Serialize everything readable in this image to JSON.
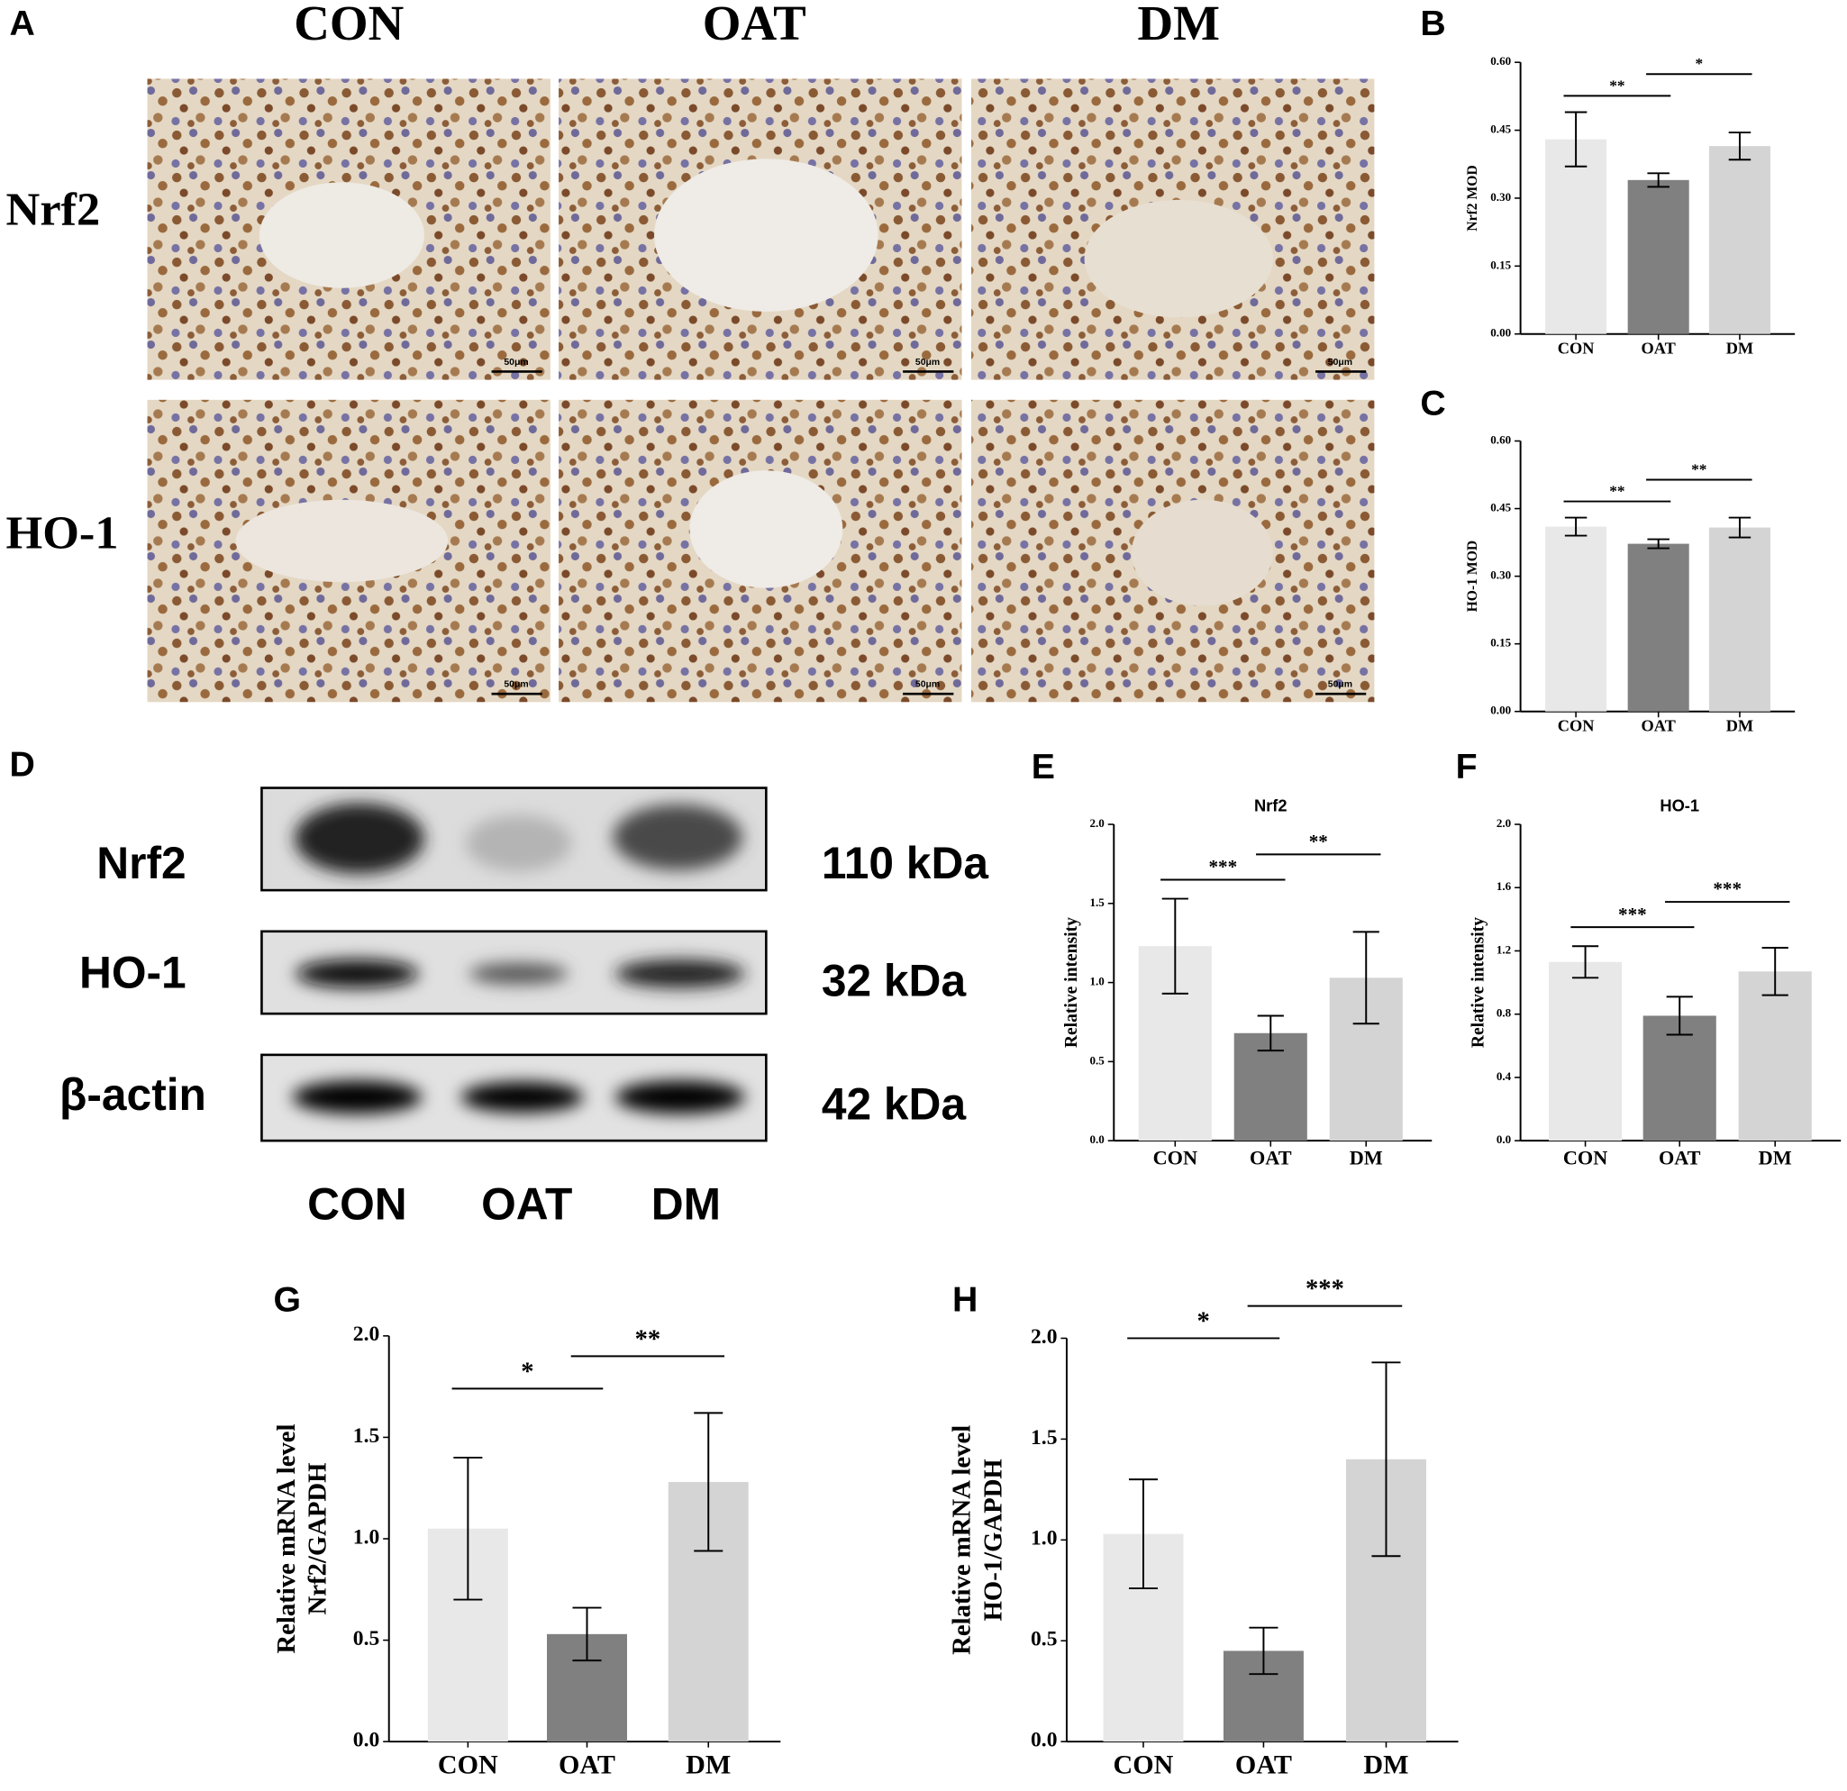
{
  "panel_labels": [
    "A",
    "B",
    "C",
    "D",
    "E",
    "F",
    "G",
    "H"
  ],
  "ihc": {
    "columns": [
      "CON",
      "OAT",
      "DM"
    ],
    "rows": [
      "Nrf2",
      "HO-1"
    ],
    "scale_bar": "50μm"
  },
  "western_blot": {
    "proteins": [
      "Nrf2",
      "HO-1",
      "β-actin"
    ],
    "sizes": [
      "110 kDa",
      "32 kDa",
      "42 kDa"
    ],
    "lanes": [
      "CON",
      "OAT",
      "DM"
    ]
  },
  "chart_data": [
    {
      "type": "bar",
      "y_label": "Nrf2 MOD",
      "categories": [
        "CON",
        "OAT",
        "DM"
      ],
      "values": [
        0.43,
        0.34,
        0.415
      ],
      "errors": [
        0.06,
        0.015,
        0.03
      ],
      "colors": [
        "#e8e8e8",
        "#808080",
        "#d4d4d4"
      ],
      "ylim": [
        0,
        0.6
      ],
      "yticks": [
        {
          "value": 0,
          "label": "0.00"
        },
        {
          "value": 0.15,
          "label": "0.15"
        },
        {
          "value": 0.3,
          "label": "0.30"
        },
        {
          "value": 0.45,
          "label": "0.45"
        },
        {
          "value": 0.6,
          "label": "0.60"
        }
      ],
      "significance": [
        "**",
        "*"
      ]
    },
    {
      "type": "bar",
      "y_label": "HO-1 MOD",
      "categories": [
        "CON",
        "OAT",
        "DM"
      ],
      "values": [
        0.41,
        0.372,
        0.408
      ],
      "errors": [
        0.02,
        0.01,
        0.022
      ],
      "colors": [
        "#e8e8e8",
        "#808080",
        "#d4d4d4"
      ],
      "ylim": [
        0,
        0.6
      ],
      "yticks": [
        {
          "value": 0,
          "label": "0.00"
        },
        {
          "value": 0.15,
          "label": "0.15"
        },
        {
          "value": 0.3,
          "label": "0.30"
        },
        {
          "value": 0.45,
          "label": "0.45"
        },
        {
          "value": 0.6,
          "label": "0.60"
        }
      ],
      "significance": [
        "**",
        "**"
      ]
    },
    {
      "type": "bar",
      "title": "Nrf2",
      "y_label": "Relative intensity",
      "categories": [
        "CON",
        "OAT",
        "DM"
      ],
      "values": [
        1.23,
        0.68,
        1.03
      ],
      "errors": [
        0.3,
        0.11,
        0.29
      ],
      "colors": [
        "#e8e8e8",
        "#808080",
        "#d4d4d4"
      ],
      "ylim": [
        0,
        2
      ],
      "yticks": [
        {
          "value": 0,
          "label": "0.0"
        },
        {
          "value": 0.5,
          "label": "0.5"
        },
        {
          "value": 1,
          "label": "1.0"
        },
        {
          "value": 1.5,
          "label": "1.5"
        },
        {
          "value": 2,
          "label": "2.0"
        }
      ],
      "significance": [
        "***",
        "**"
      ]
    },
    {
      "type": "bar",
      "title": "HO-1",
      "y_label": "Relative intensity",
      "categories": [
        "CON",
        "OAT",
        "DM"
      ],
      "values": [
        1.13,
        0.79,
        1.07
      ],
      "errors": [
        0.1,
        0.12,
        0.15
      ],
      "colors": [
        "#e8e8e8",
        "#808080",
        "#d4d4d4"
      ],
      "ylim": [
        0,
        2
      ],
      "yticks": [
        {
          "value": 0,
          "label": "0.0"
        },
        {
          "value": 0.4,
          "label": "0.4"
        },
        {
          "value": 0.8,
          "label": "0.8"
        },
        {
          "value": 1.2,
          "label": "1.2"
        },
        {
          "value": 1.6,
          "label": "1.6"
        },
        {
          "value": 2,
          "label": "2.0"
        }
      ],
      "significance": [
        "***",
        "***"
      ]
    },
    {
      "type": "bar",
      "y_label": [
        "Relative mRNA level",
        "Nrf2/GAPDH"
      ],
      "categories": [
        "CON",
        "OAT",
        "DM"
      ],
      "values": [
        1.05,
        0.53,
        1.28
      ],
      "errors": [
        0.35,
        0.13,
        0.34
      ],
      "colors": [
        "#e8e8e8",
        "#808080",
        "#d4d4d4"
      ],
      "ylim": [
        0,
        2
      ],
      "yticks": [
        {
          "value": 0,
          "label": "0.0"
        },
        {
          "value": 0.5,
          "label": "0.5"
        },
        {
          "value": 1,
          "label": "1.0"
        },
        {
          "value": 1.5,
          "label": "1.5"
        },
        {
          "value": 2,
          "label": "2.0"
        }
      ],
      "significance": [
        "*",
        "**"
      ]
    },
    {
      "type": "bar",
      "y_label": [
        "Relative mRNA level",
        "HO-1/GAPDH"
      ],
      "categories": [
        "CON",
        "OAT",
        "DM"
      ],
      "values": [
        1.03,
        0.45,
        1.4
      ],
      "errors": [
        0.27,
        0.115,
        0.48
      ],
      "colors": [
        "#e8e8e8",
        "#808080",
        "#d4d4d4"
      ],
      "ylim": [
        0,
        2
      ],
      "yticks": [
        {
          "value": 0,
          "label": "0.0"
        },
        {
          "value": 0.5,
          "label": "0.5"
        },
        {
          "value": 1,
          "label": "1.0"
        },
        {
          "value": 1.5,
          "label": "1.5"
        },
        {
          "value": 2,
          "label": "2.0"
        }
      ],
      "significance": [
        "*",
        "***"
      ]
    }
  ]
}
